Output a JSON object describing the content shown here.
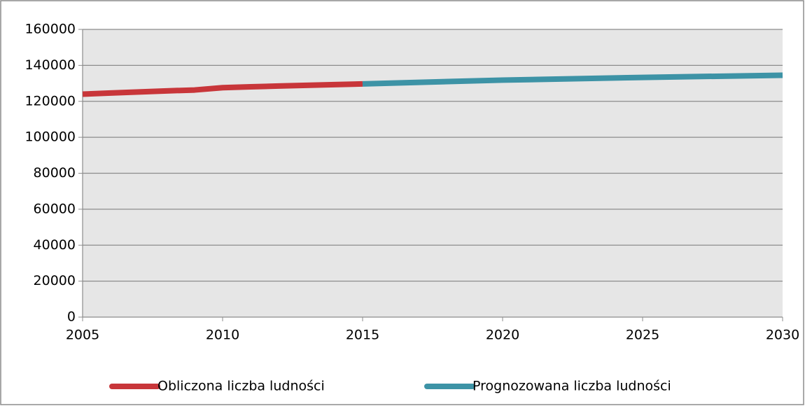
{
  "chart_data": {
    "type": "line",
    "series": [
      {
        "name": "Obliczona liczba ludności",
        "color": "#c8363a",
        "x": [
          2005,
          2006,
          2007,
          2008,
          2009,
          2010,
          2011,
          2012,
          2013,
          2014,
          2015
        ],
        "values": [
          124000,
          124600,
          125200,
          125800,
          126300,
          127600,
          128100,
          128500,
          128900,
          129300,
          129700
        ]
      },
      {
        "name": "Prognozowana liczba ludności",
        "color": "#3d93a6",
        "x": [
          2015,
          2020,
          2025,
          2030
        ],
        "values": [
          129700,
          131800,
          133300,
          134500
        ]
      }
    ],
    "xlim": [
      2005,
      2030
    ],
    "xticks": [
      2005,
      2010,
      2015,
      2020,
      2025,
      2030
    ],
    "ylim": [
      0,
      160000
    ],
    "yticks": [
      0,
      20000,
      40000,
      60000,
      80000,
      100000,
      120000,
      140000,
      160000
    ],
    "grid": true,
    "legend": "bottom"
  }
}
